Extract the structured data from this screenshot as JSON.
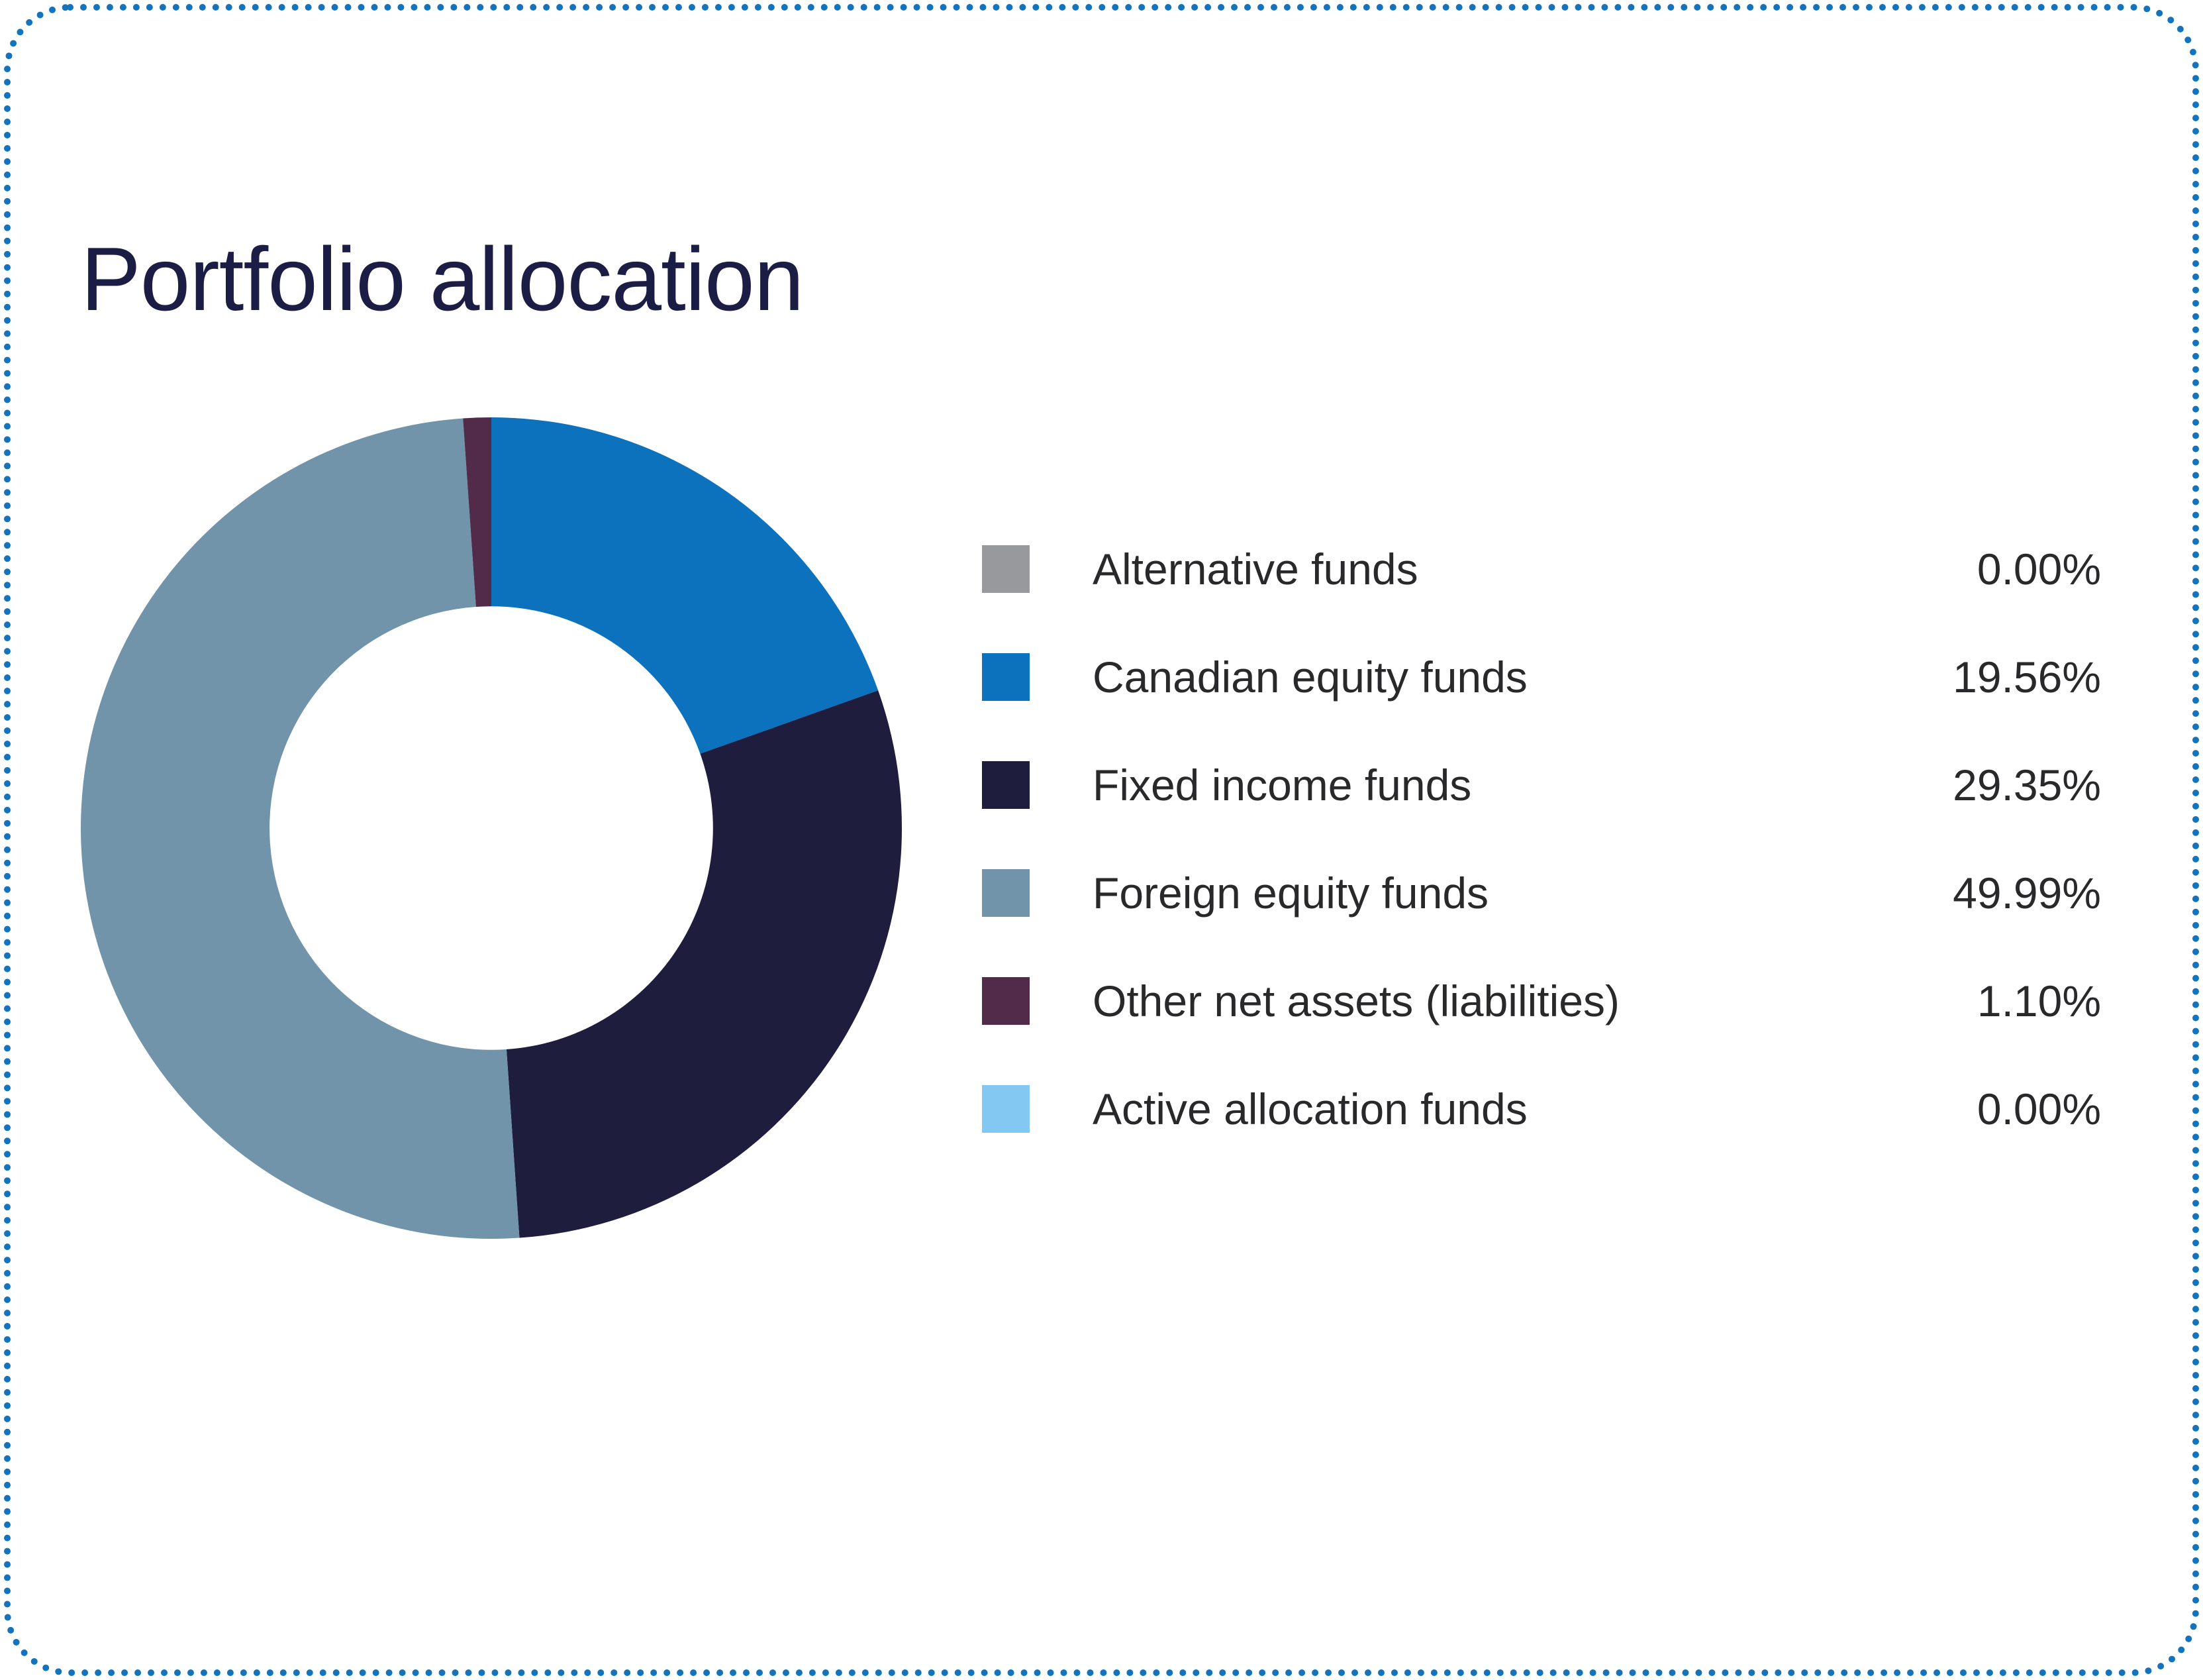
{
  "card": {
    "title": "Portfolio allocation"
  },
  "colors": {
    "frame_dotted_border": "#1373BC",
    "title_text": "#1C1D45",
    "legend_text": "#29282A",
    "background": "#FFFFFF"
  },
  "chart_data": {
    "type": "pie",
    "subtype": "donut",
    "title": "Portfolio allocation",
    "legend_position": "right",
    "start_angle_deg": 0,
    "direction": "clockwise",
    "inner_radius_ratio": 0.54,
    "total": 100.0,
    "segments": [
      {
        "label": "Alternative funds",
        "value": 0.0,
        "display": "0.00%",
        "color": "#98999C"
      },
      {
        "label": "Canadian equity funds",
        "value": 19.56,
        "display": "19.56%",
        "color": "#0C72BD"
      },
      {
        "label": "Fixed income funds",
        "value": 29.35,
        "display": "29.35%",
        "color": "#1E1D3D"
      },
      {
        "label": "Foreign equity funds",
        "value": 49.99,
        "display": "49.99%",
        "color": "#7194AA"
      },
      {
        "label": "Other net assets (liabilities)",
        "value": 1.1,
        "display": "1.10%",
        "color": "#522B4B"
      },
      {
        "label": "Active allocation funds",
        "value": 0.0,
        "display": "0.00%",
        "color": "#82C8F3"
      }
    ]
  }
}
